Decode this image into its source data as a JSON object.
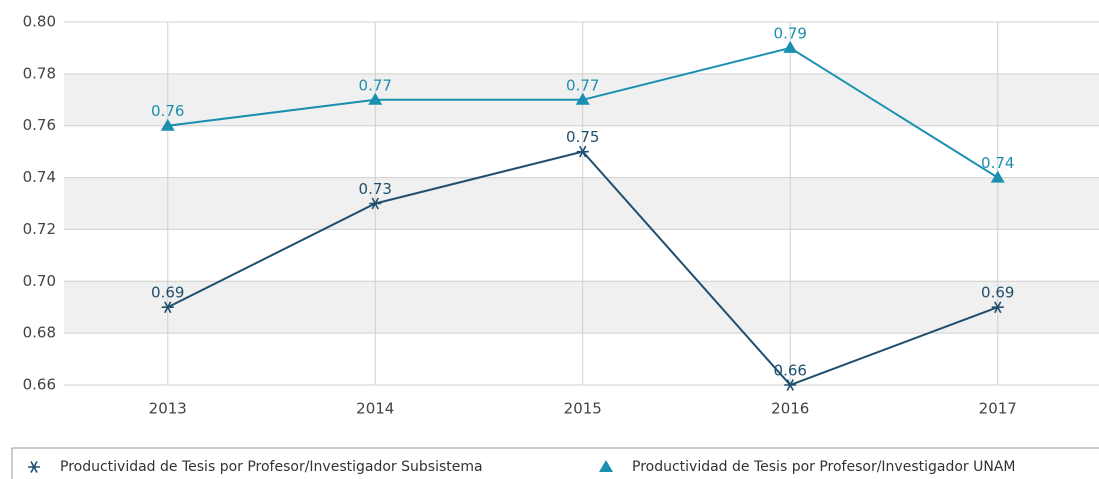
{
  "chart_data": {
    "type": "line",
    "categories": [
      "2013",
      "2014",
      "2015",
      "2016",
      "2017"
    ],
    "series": [
      {
        "name": "Productividad de Tesis por Profesor/Investigador Subsistema",
        "color": "#1f4e6e",
        "marker": "star",
        "values": [
          0.69,
          0.73,
          0.75,
          0.66,
          0.69
        ]
      },
      {
        "name": "Productividad de Tesis por Profesor/Investigador UNAM",
        "color": "#1a8fb0",
        "marker": "triangle",
        "values": [
          0.76,
          0.77,
          0.77,
          0.79,
          0.74
        ]
      }
    ],
    "ylim": [
      0.66,
      0.8
    ],
    "yticks": [
      0.66,
      0.68,
      {
        "value": 0.7,
        "label": "0.70"
      },
      0.72,
      0.74,
      0.76,
      0.78,
      {
        "value": 0.8,
        "label": "0.80"
      }
    ],
    "grid": true
  }
}
